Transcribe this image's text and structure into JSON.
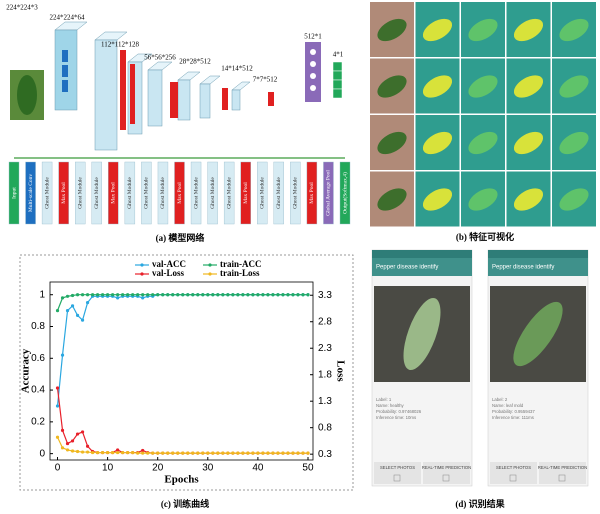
{
  "panel_a": {
    "caption": "(a) 模型网络",
    "dims": [
      "224*224*3",
      "224*224*64",
      "112*112*128",
      "56*56*256",
      "28*28*512",
      "14*14*512",
      "7*7*512",
      "512*1",
      "4*1"
    ],
    "modules": [
      {
        "label": "Input",
        "color": "#22a85a"
      },
      {
        "label": "Multi-scale Conv",
        "color": "#1e6fc0"
      },
      {
        "label": "Ghost Module",
        "color": "#d6ebf3"
      },
      {
        "label": "Max Pool",
        "color": "#e02020"
      },
      {
        "label": "Ghost Module",
        "color": "#d6ebf3"
      },
      {
        "label": "Ghost Module",
        "color": "#d6ebf3"
      },
      {
        "label": "Max Pool",
        "color": "#e02020"
      },
      {
        "label": "Ghost Module",
        "color": "#d6ebf3"
      },
      {
        "label": "Ghost Module",
        "color": "#d6ebf3"
      },
      {
        "label": "Ghost Module",
        "color": "#d6ebf3"
      },
      {
        "label": "Max Pool",
        "color": "#e02020"
      },
      {
        "label": "Ghost Module",
        "color": "#d6ebf3"
      },
      {
        "label": "Ghost Module",
        "color": "#d6ebf3"
      },
      {
        "label": "Ghost Module",
        "color": "#d6ebf3"
      },
      {
        "label": "Max Pool",
        "color": "#e02020"
      },
      {
        "label": "Ghost Module",
        "color": "#d6ebf3"
      },
      {
        "label": "Ghost Module",
        "color": "#d6ebf3"
      },
      {
        "label": "Ghost Module",
        "color": "#d6ebf3"
      },
      {
        "label": "Max Pool",
        "color": "#e02020"
      },
      {
        "label": "Global Average Pool",
        "color": "#8a6ab8"
      },
      {
        "label": "Output(Softmax,4)",
        "color": "#22a85a"
      }
    ]
  },
  "panel_b": {
    "caption": "(b) 特征可视化"
  },
  "chart_data": {
    "type": "line",
    "caption": "(c) 训练曲线",
    "x_label": "Epochs",
    "y_label": "Accuracy",
    "y2_label": "Loss",
    "x": [
      0,
      1,
      2,
      3,
      4,
      5,
      6,
      7,
      8,
      9,
      10,
      11,
      12,
      13,
      14,
      15,
      16,
      17,
      18,
      19,
      20,
      21,
      22,
      23,
      24,
      25,
      26,
      27,
      28,
      29,
      30,
      31,
      32,
      33,
      34,
      35,
      36,
      37,
      38,
      39,
      40,
      41,
      42,
      43,
      44,
      45,
      46,
      47,
      48,
      49,
      50
    ],
    "series": [
      {
        "name": "val-ACC",
        "color": "#2aa7e0",
        "values": [
          0.3,
          0.62,
          0.9,
          0.93,
          0.87,
          0.84,
          0.95,
          0.99,
          0.99,
          0.99,
          0.99,
          0.99,
          0.98,
          0.99,
          0.99,
          0.99,
          0.99,
          0.98,
          0.99,
          0.99,
          1,
          1,
          1,
          1,
          1,
          1,
          1,
          1,
          1,
          1,
          1,
          1,
          1,
          1,
          1,
          1,
          1,
          1,
          1,
          1,
          1,
          1,
          1,
          1,
          1,
          1,
          1,
          1,
          1,
          1,
          1
        ]
      },
      {
        "name": "val-Loss",
        "color": "#e8202a",
        "axis": "y2",
        "values": [
          1.55,
          0.75,
          0.5,
          0.55,
          0.68,
          0.72,
          0.45,
          0.35,
          0.33,
          0.33,
          0.33,
          0.33,
          0.38,
          0.33,
          0.33,
          0.33,
          0.33,
          0.37,
          0.33,
          0.32,
          0.32,
          0.32,
          0.32,
          0.32,
          0.32,
          0.32,
          0.32,
          0.32,
          0.32,
          0.32,
          0.32,
          0.32,
          0.32,
          0.32,
          0.32,
          0.32,
          0.32,
          0.32,
          0.32,
          0.32,
          0.32,
          0.32,
          0.32,
          0.32,
          0.32,
          0.32,
          0.32,
          0.32,
          0.32,
          0.32,
          0.32
        ]
      },
      {
        "name": "train-ACC",
        "color": "#22aa66",
        "values": [
          0.9,
          0.98,
          0.99,
          0.995,
          1,
          1,
          1,
          1,
          1,
          1,
          1,
          1,
          1,
          1,
          1,
          1,
          1,
          1,
          1,
          1,
          1,
          1,
          1,
          1,
          1,
          1,
          1,
          1,
          1,
          1,
          1,
          1,
          1,
          1,
          1,
          1,
          1,
          1,
          1,
          1,
          1,
          1,
          1,
          1,
          1,
          1,
          1,
          1,
          1,
          1,
          1
        ]
      },
      {
        "name": "train-Loss",
        "color": "#f0b820",
        "axis": "y2",
        "values": [
          0.62,
          0.42,
          0.38,
          0.36,
          0.35,
          0.34,
          0.34,
          0.33,
          0.33,
          0.33,
          0.33,
          0.33,
          0.33,
          0.33,
          0.33,
          0.33,
          0.32,
          0.32,
          0.32,
          0.32,
          0.32,
          0.32,
          0.32,
          0.32,
          0.32,
          0.32,
          0.32,
          0.32,
          0.32,
          0.32,
          0.32,
          0.32,
          0.32,
          0.32,
          0.32,
          0.32,
          0.32,
          0.32,
          0.32,
          0.32,
          0.32,
          0.32,
          0.32,
          0.32,
          0.32,
          0.32,
          0.32,
          0.32,
          0.32,
          0.32,
          0.32
        ]
      }
    ],
    "xlim": [
      -1.5,
      51
    ],
    "xticks": [
      0,
      10,
      20,
      30,
      40,
      50
    ],
    "ylim": [
      -0.04,
      1.08
    ],
    "yticks": [
      0,
      0.2,
      0.4,
      0.6,
      0.8,
      1
    ],
    "y2lim": [
      0.19,
      3.55
    ],
    "y2ticks": [
      0.3,
      0.8,
      1.3,
      1.8,
      2.3,
      2.8,
      3.3
    ]
  },
  "panel_d": {
    "caption": "(d) 识别结果",
    "screens": [
      {
        "title": "Pepper disease identify",
        "label": "Label:  1",
        "name": "Name:  healthy",
        "probability": "Probability:  0.97468026",
        "time": "Inference time:  10ms",
        "buttons": [
          "SELECT PHOTOS",
          "REAL-TIME PREDICTION"
        ]
      },
      {
        "title": "Pepper disease identify",
        "label": "Label:  2",
        "name": "Name:  leaf mold",
        "probability": "Probability:  0.9559437",
        "time": "Inference time:  111ms",
        "buttons": [
          "SELECT PHOTOS",
          "REAL-TIME PREDICTION"
        ]
      }
    ]
  }
}
